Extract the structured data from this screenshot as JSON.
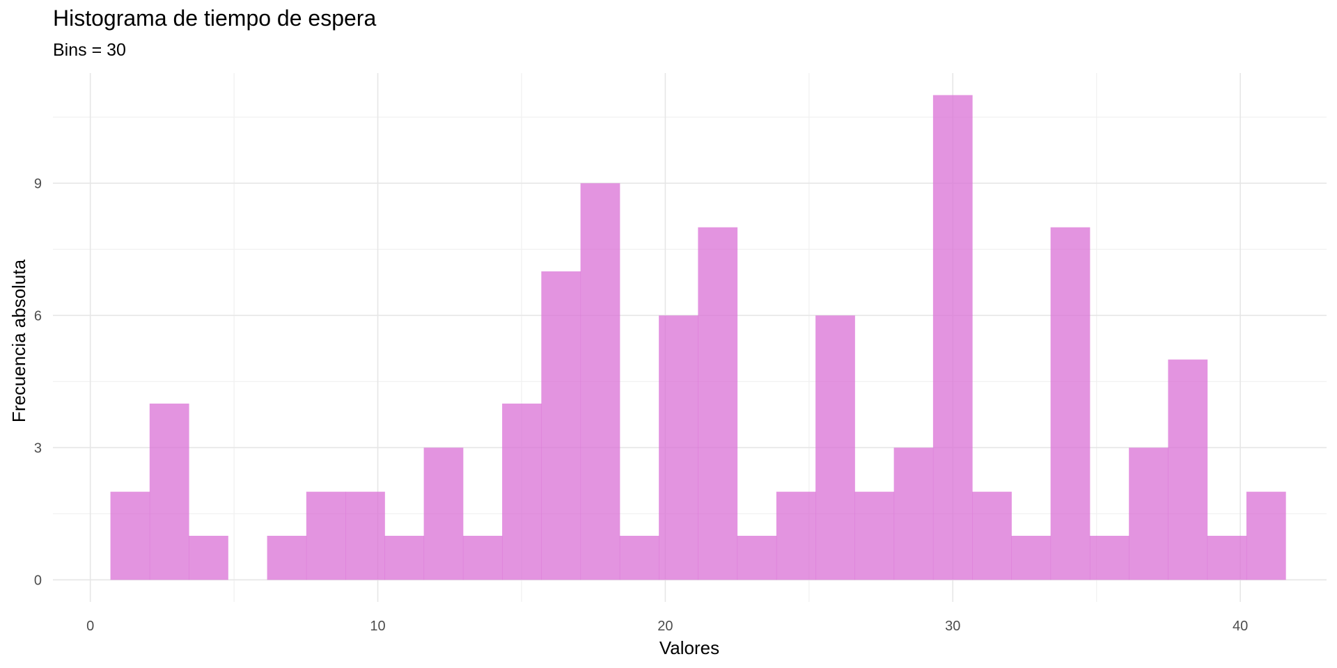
{
  "chart_data": {
    "type": "bar",
    "title": "Histograma de tiempo de espera",
    "subtitle": "Bins = 30",
    "xlabel": "Valores",
    "ylabel": "Frecuencia absoluta",
    "bins": 30,
    "bin_start": 0.7,
    "bin_width": 1.3625,
    "counts": [
      2,
      4,
      1,
      0,
      1,
      2,
      2,
      1,
      3,
      1,
      4,
      7,
      9,
      1,
      6,
      8,
      1,
      2,
      6,
      2,
      3,
      11,
      2,
      1,
      8,
      1,
      3,
      5,
      1,
      2
    ],
    "xlim": [
      -1.3,
      43.0
    ],
    "ylim": [
      -0.5,
      11.5
    ],
    "xticks": [
      0,
      10,
      20,
      30,
      40
    ],
    "yticks": [
      0,
      3,
      6,
      9
    ],
    "grid": true,
    "bar_color": "#da70d6"
  }
}
